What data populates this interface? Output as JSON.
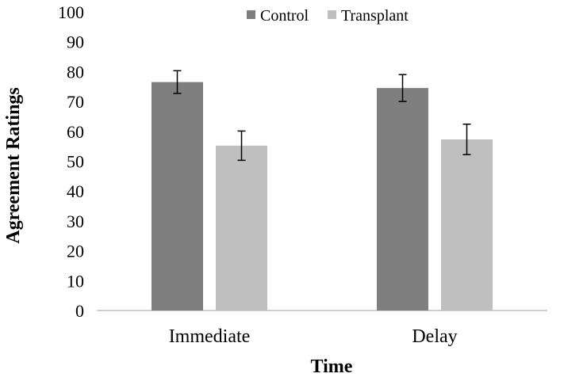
{
  "chart_data": {
    "type": "bar",
    "categories": [
      "Immediate",
      "Delay"
    ],
    "series": [
      {
        "name": "Control",
        "color": "#7f7f7f",
        "values": [
          76.5,
          74.5
        ],
        "error": [
          3.8,
          4.5
        ]
      },
      {
        "name": "Transplant",
        "color": "#bfbfbf",
        "values": [
          55.2,
          57.3
        ],
        "error": [
          4.9,
          5.1
        ]
      }
    ],
    "xlabel": "Time",
    "ylabel": "Agreement Ratings",
    "ylim": [
      0,
      100
    ],
    "yticks": [
      0,
      10,
      20,
      30,
      40,
      50,
      60,
      70,
      80,
      90,
      100
    ],
    "grid": false,
    "legend_position": "top-center"
  }
}
